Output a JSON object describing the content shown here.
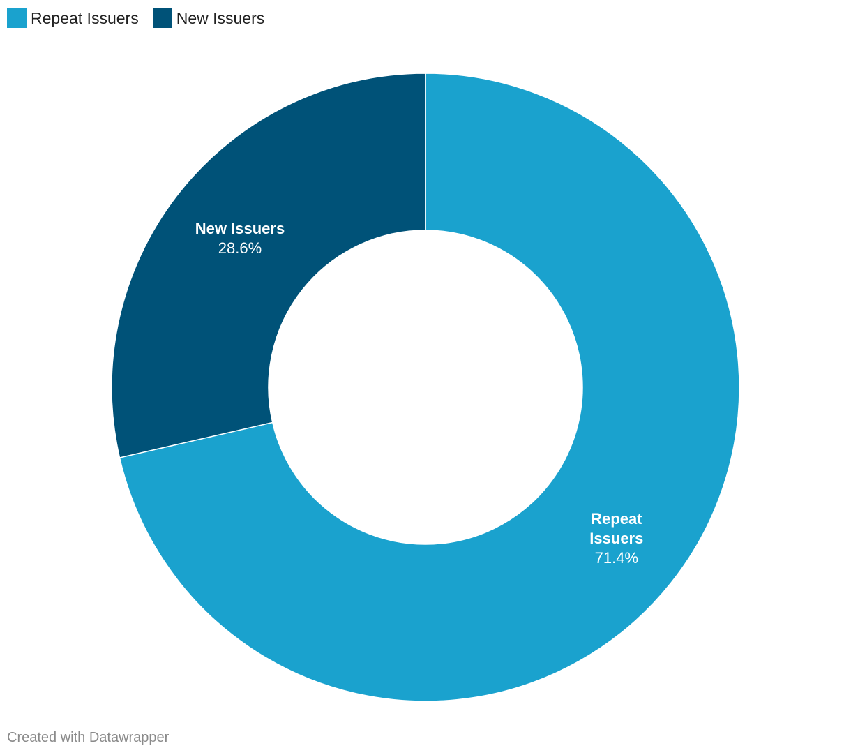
{
  "chart_data": {
    "type": "pie",
    "variant": "donut",
    "categories": [
      "Repeat Issuers",
      "New Issuers"
    ],
    "values": [
      71.4,
      28.6
    ],
    "value_labels": [
      "71.4%",
      "28.6%"
    ],
    "slice_labels": [
      [
        "Repeat",
        "Issuers"
      ],
      [
        "New Issuers"
      ]
    ],
    "colors": [
      "#1aa2ce",
      "#005278"
    ],
    "legend": "top-left"
  },
  "legend": {
    "items": [
      {
        "label": "Repeat Issuers",
        "color": "#1aa2ce"
      },
      {
        "label": "New Issuers",
        "color": "#005278"
      }
    ]
  },
  "footer": {
    "credit": "Created with Datawrapper"
  }
}
